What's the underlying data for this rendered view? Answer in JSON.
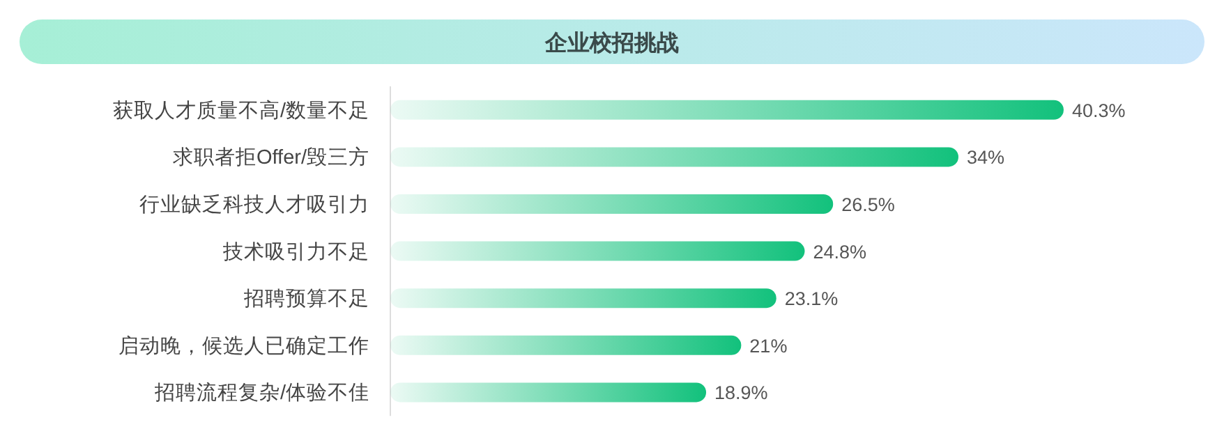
{
  "chart_data": {
    "type": "bar",
    "orientation": "horizontal",
    "title": "企业校招挑战",
    "categories": [
      "获取人才质量不高/数量不足",
      "求职者拒Offer/毁三方",
      "行业缺乏科技人才吸引力",
      "技术吸引力不足",
      "招聘预算不足",
      "启动晚，候选人已确定工作",
      "招聘流程复杂/体验不佳"
    ],
    "values": [
      40.3,
      34,
      26.5,
      24.8,
      23.1,
      21,
      18.9
    ],
    "value_labels": [
      "40.3%",
      "34%",
      "26.5%",
      "24.8%",
      "23.1%",
      "21%",
      "18.9%"
    ],
    "color": "#12c17c"
  }
}
